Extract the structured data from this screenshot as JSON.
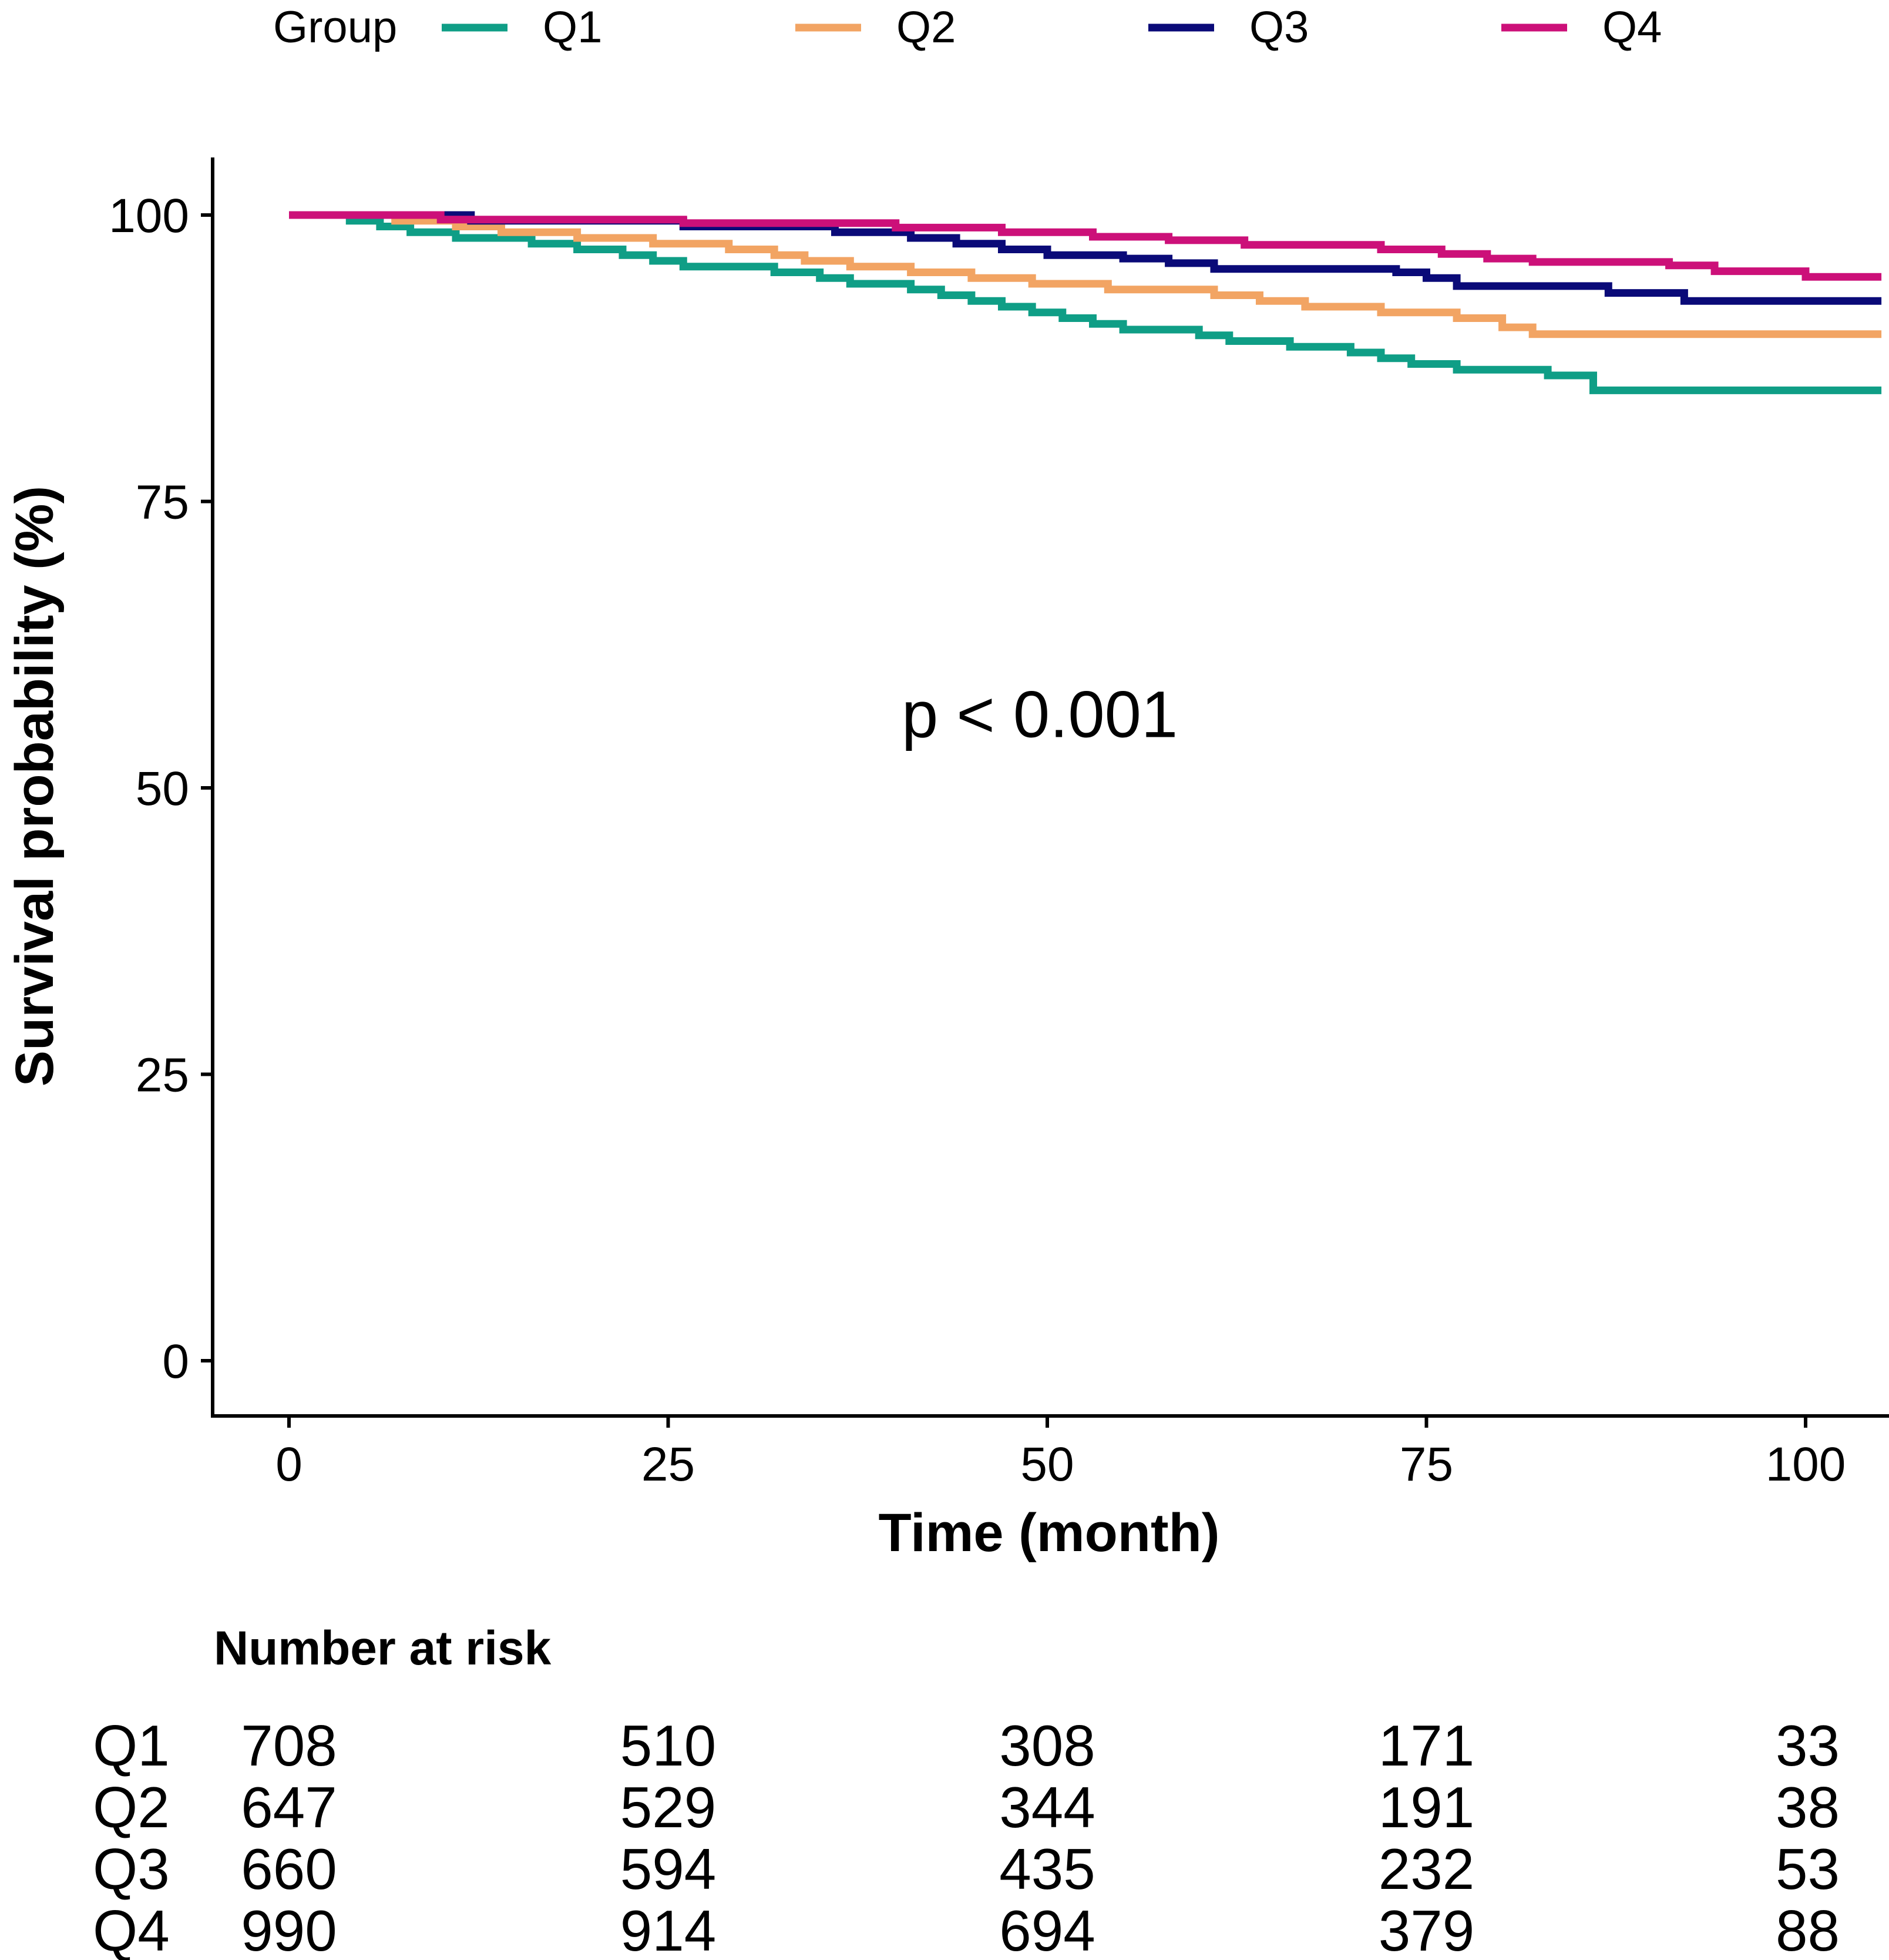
{
  "chart_data": {
    "type": "line",
    "subtype": "kaplan-meier",
    "legend_title": "Group",
    "legend_position": "top",
    "xlabel": "Time (month)",
    "ylabel": "Survival probability (%)",
    "xlim": [
      -5,
      105
    ],
    "ylim": [
      -5,
      105
    ],
    "x_ticks": [
      0,
      25,
      50,
      75,
      100
    ],
    "y_ticks": [
      0,
      25,
      50,
      75,
      100
    ],
    "x_tick_labels": [
      "0",
      "25",
      "50",
      "75",
      "100"
    ],
    "y_tick_labels": [
      "0",
      "25",
      "50",
      "75",
      "100"
    ],
    "grid": false,
    "annotation": "p < 0.001",
    "annotation_position": [
      49.5,
      56.5
    ],
    "series": [
      {
        "name": "Q1",
        "color": "#0F9E86",
        "points": [
          [
            0,
            100
          ],
          [
            4,
            99.5
          ],
          [
            6,
            99
          ],
          [
            8,
            98.5
          ],
          [
            11,
            98
          ],
          [
            16,
            97.5
          ],
          [
            19,
            97
          ],
          [
            22,
            96.5
          ],
          [
            24,
            96
          ],
          [
            26,
            95.5
          ],
          [
            32,
            95
          ],
          [
            35,
            94.5
          ],
          [
            37,
            94
          ],
          [
            41,
            93.5
          ],
          [
            43,
            93
          ],
          [
            45,
            92.5
          ],
          [
            47,
            92
          ],
          [
            49,
            91.5
          ],
          [
            51,
            91
          ],
          [
            53,
            90.5
          ],
          [
            55,
            90
          ],
          [
            60,
            89.5
          ],
          [
            62,
            89
          ],
          [
            66,
            88.5
          ],
          [
            70,
            88
          ],
          [
            72,
            87.5
          ],
          [
            74,
            87
          ],
          [
            77,
            86.5
          ],
          [
            83,
            86
          ],
          [
            86,
            84.7
          ],
          [
            105,
            84.7
          ]
        ]
      },
      {
        "name": "Q2",
        "color": "#F2A463",
        "points": [
          [
            0,
            100
          ],
          [
            7,
            99.5
          ],
          [
            11,
            99
          ],
          [
            14,
            98.5
          ],
          [
            19,
            98
          ],
          [
            24,
            97.5
          ],
          [
            29,
            97
          ],
          [
            32,
            96.5
          ],
          [
            34,
            96
          ],
          [
            37,
            95.5
          ],
          [
            41,
            95
          ],
          [
            45,
            94.5
          ],
          [
            49,
            94
          ],
          [
            54,
            93.5
          ],
          [
            61,
            93
          ],
          [
            64,
            92.5
          ],
          [
            67,
            92
          ],
          [
            72,
            91.5
          ],
          [
            77,
            91
          ],
          [
            80,
            90.2
          ],
          [
            82,
            89.6
          ],
          [
            105,
            89.6
          ]
        ]
      },
      {
        "name": "Q3",
        "color": "#0A0A78",
        "points": [
          [
            0,
            100
          ],
          [
            12,
            99.5
          ],
          [
            26,
            99
          ],
          [
            36,
            98.5
          ],
          [
            41,
            98
          ],
          [
            44,
            97.5
          ],
          [
            47,
            97
          ],
          [
            50,
            96.5
          ],
          [
            55,
            96.2
          ],
          [
            58,
            95.8
          ],
          [
            61,
            95.3
          ],
          [
            73,
            95
          ],
          [
            75,
            94.5
          ],
          [
            77,
            93.8
          ],
          [
            87,
            93.2
          ],
          [
            92,
            92.5
          ],
          [
            105,
            92.5
          ]
        ]
      },
      {
        "name": "Q4",
        "color": "#CC1079",
        "points": [
          [
            0,
            100
          ],
          [
            10,
            99.6
          ],
          [
            26,
            99.3
          ],
          [
            40,
            98.9
          ],
          [
            47,
            98.5
          ],
          [
            53,
            98.1
          ],
          [
            58,
            97.8
          ],
          [
            63,
            97.4
          ],
          [
            72,
            97
          ],
          [
            76,
            96.6
          ],
          [
            79,
            96.2
          ],
          [
            82,
            95.9
          ],
          [
            91,
            95.6
          ],
          [
            94,
            95.1
          ],
          [
            100,
            94.6
          ],
          [
            105,
            94.6
          ]
        ]
      }
    ],
    "risk_table": {
      "title": "Number at risk",
      "times": [
        0,
        25,
        50,
        75,
        100
      ],
      "rows": [
        {
          "group": "Q1",
          "values": [
            "708",
            "510",
            "308",
            "171",
            "33"
          ]
        },
        {
          "group": "Q2",
          "values": [
            "647",
            "529",
            "344",
            "191",
            "38"
          ]
        },
        {
          "group": "Q3",
          "values": [
            "660",
            "594",
            "435",
            "232",
            "53"
          ]
        },
        {
          "group": "Q4",
          "values": [
            "990",
            "914",
            "694",
            "379",
            "88"
          ]
        }
      ]
    }
  }
}
